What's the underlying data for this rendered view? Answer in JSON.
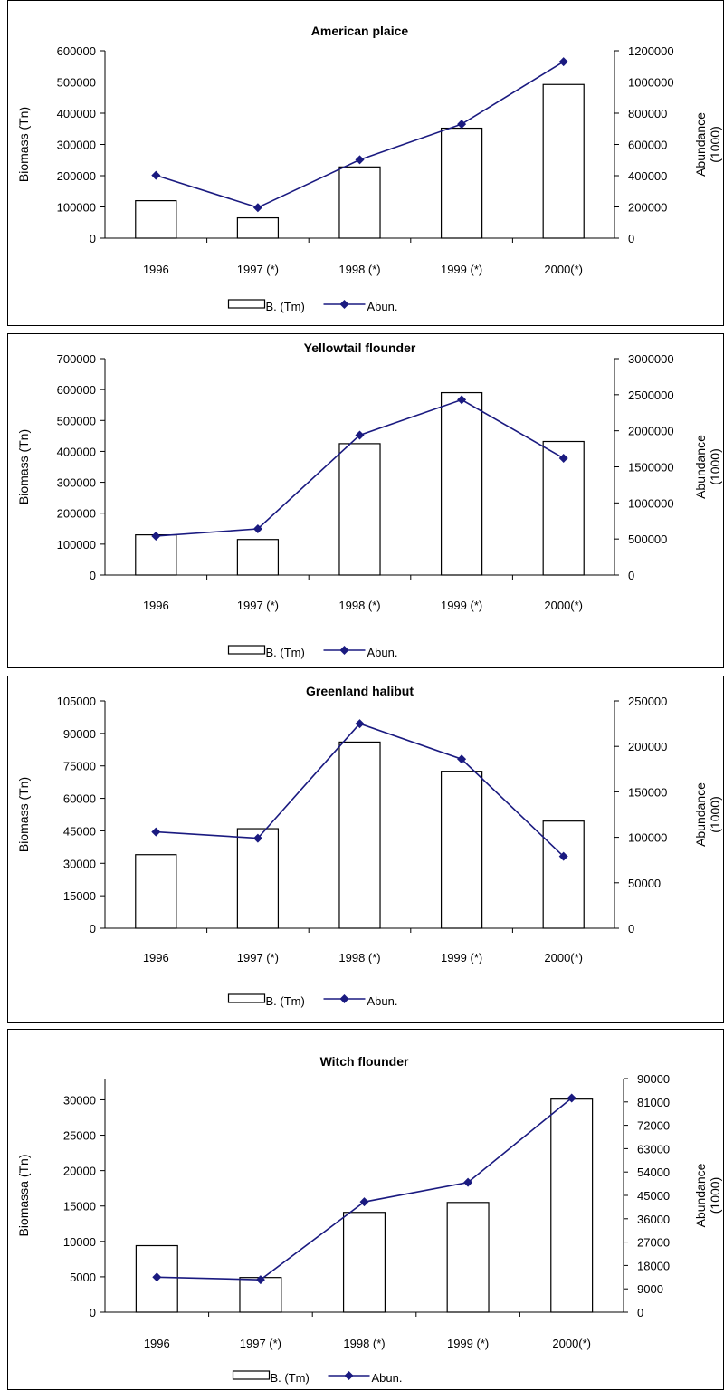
{
  "chart_data": [
    {
      "type": "bar+line",
      "title": "American plaice",
      "categories": [
        "1996",
        "1997 (*)",
        "1998 (*)",
        "1999 (*)",
        "2000(*)"
      ],
      "ylabel": "Biomass (Tn)",
      "y2label": [
        "Abundance",
        "(1000)"
      ],
      "ylim": [
        0,
        600000
      ],
      "yticks": [
        0,
        100000,
        200000,
        300000,
        400000,
        500000,
        600000
      ],
      "y2lim": [
        0,
        1200000
      ],
      "y2ticks": [
        0,
        200000,
        400000,
        600000,
        800000,
        1000000,
        1200000
      ],
      "series": [
        {
          "name": "B. (Tm)",
          "kind": "bar",
          "axis": "left",
          "values": [
            120000,
            65000,
            228000,
            352000,
            492000
          ]
        },
        {
          "name": "Abun.",
          "kind": "line",
          "axis": "right",
          "color": "#1a1a80",
          "values": [
            402000,
            196000,
            502000,
            730000,
            1130000
          ]
        }
      ],
      "legend": "bottom-center"
    },
    {
      "type": "bar+line",
      "title": "Yellowtail flounder",
      "categories": [
        "1996",
        "1997 (*)",
        "1998 (*)",
        "1999 (*)",
        "2000(*)"
      ],
      "ylabel": "Biomass (Tn)",
      "y2label": [
        "Abundance",
        "(1000)"
      ],
      "ylim": [
        0,
        700000
      ],
      "yticks": [
        0,
        100000,
        200000,
        300000,
        400000,
        500000,
        600000,
        700000
      ],
      "y2lim": [
        0,
        3000000
      ],
      "y2ticks": [
        0,
        500000,
        1000000,
        1500000,
        2000000,
        2500000,
        3000000
      ],
      "series": [
        {
          "name": "B. (Tm)",
          "kind": "bar",
          "axis": "left",
          "values": [
            130000,
            115000,
            425000,
            590000,
            432000
          ]
        },
        {
          "name": "Abun.",
          "kind": "line",
          "axis": "right",
          "color": "#1a1a80",
          "values": [
            540000,
            640000,
            1940000,
            2430000,
            1620000
          ]
        }
      ],
      "legend": "bottom-center"
    },
    {
      "type": "bar+line",
      "title": "Greenland halibut",
      "categories": [
        "1996",
        "1997 (*)",
        "1998 (*)",
        "1999 (*)",
        "2000(*)"
      ],
      "ylabel": "Biomass (Tn)",
      "y2label": [
        "Abundance",
        "(1000)"
      ],
      "ylim": [
        0,
        105000
      ],
      "yticks": [
        0,
        15000,
        30000,
        45000,
        60000,
        75000,
        90000,
        105000
      ],
      "y2lim": [
        0,
        250000
      ],
      "y2ticks": [
        0,
        50000,
        100000,
        150000,
        200000,
        250000
      ],
      "series": [
        {
          "name": "B. (Tm)",
          "kind": "bar",
          "axis": "left",
          "values": [
            34000,
            46000,
            86000,
            72500,
            49500
          ]
        },
        {
          "name": "Abun.",
          "kind": "line",
          "axis": "right",
          "color": "#1a1a80",
          "values": [
            106000,
            99000,
            225000,
            186000,
            79000
          ]
        }
      ],
      "legend": "bottom-center"
    },
    {
      "type": "bar+line",
      "title": "Witch flounder",
      "categories": [
        "1996",
        "1997 (*)",
        "1998 (*)",
        "1999 (*)",
        "2000(*)"
      ],
      "ylabel": "Biomassa  (Tn)",
      "y2label": [
        "Abundance",
        "(1000)"
      ],
      "ylim": [
        0,
        33000
      ],
      "yticks": [
        0,
        5000,
        10000,
        15000,
        20000,
        25000,
        30000
      ],
      "y2lim": [
        0,
        90000
      ],
      "y2ticks": [
        0,
        9000,
        18000,
        27000,
        36000,
        45000,
        54000,
        63000,
        72000,
        81000,
        90000
      ],
      "series": [
        {
          "name": "B. (Tm)",
          "kind": "bar",
          "axis": "left",
          "values": [
            9400,
            4900,
            14100,
            15500,
            30100
          ]
        },
        {
          "name": "Abun.",
          "kind": "line",
          "axis": "right",
          "color": "#1a1a80",
          "values": [
            13500,
            12500,
            42500,
            50000,
            82500
          ]
        }
      ],
      "legend": "bottom-center"
    }
  ]
}
